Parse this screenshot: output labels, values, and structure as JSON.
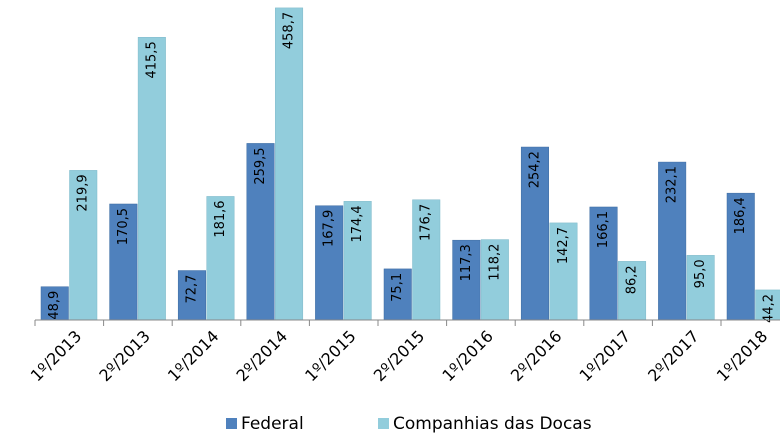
{
  "chart_data": {
    "type": "bar",
    "categories": [
      "1º/2013",
      "2º/2013",
      "1º/2014",
      "2º/2014",
      "1º/2015",
      "2º/2015",
      "1º/2016",
      "2º/2016",
      "1º/2017",
      "2º/2017",
      "1º/2018"
    ],
    "series": [
      {
        "name": "Federal",
        "color": "#4f81bd",
        "values": [
          48.9,
          170.5,
          72.7,
          259.5,
          167.9,
          75.1,
          117.3,
          254.2,
          166.1,
          232.1,
          186.4
        ],
        "value_labels": [
          "48,9",
          "170,5",
          "72,7",
          "259,5",
          "167,9",
          "75,1",
          "117,3",
          "254,2",
          "166,1",
          "232,1",
          "186,4"
        ]
      },
      {
        "name": "Companhias das Docas",
        "color": "#92cddc",
        "values": [
          219.9,
          415.5,
          181.6,
          458.7,
          174.4,
          176.7,
          118.2,
          142.7,
          86.2,
          95.0,
          44.2
        ],
        "value_labels": [
          "219,9",
          "415,5",
          "181,6",
          "458,7",
          "174,4",
          "176,7",
          "118,2",
          "142,7",
          "86,2",
          "95,0",
          "44,2"
        ]
      }
    ],
    "ylim": [
      0,
      460
    ],
    "legend": "bottom"
  }
}
